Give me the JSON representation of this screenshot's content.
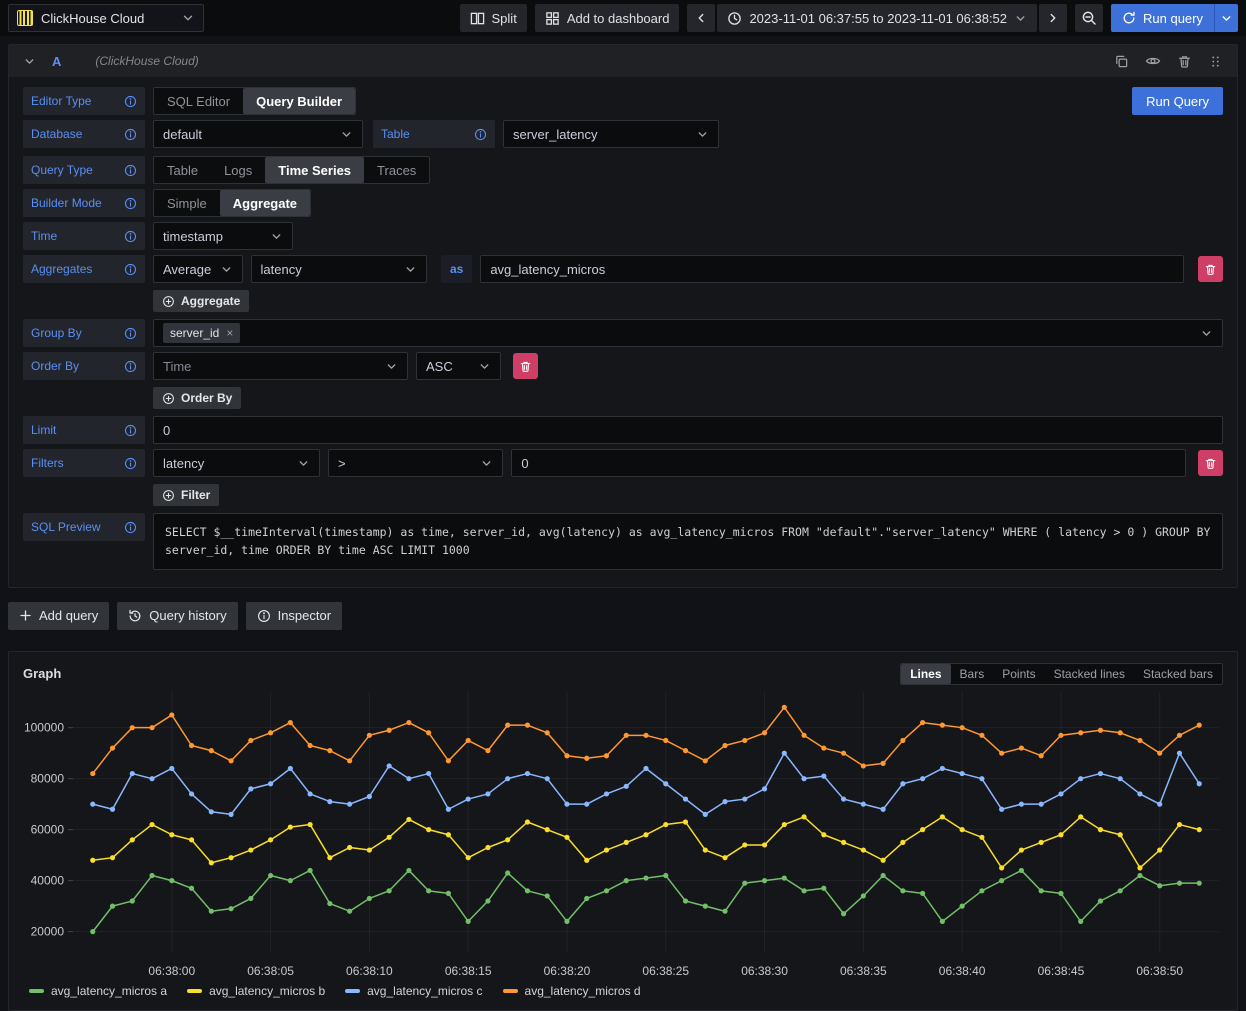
{
  "topbar": {
    "datasource_name": "ClickHouse Cloud",
    "split": "Split",
    "add_to_dashboard": "Add to dashboard",
    "time_range": "2023-11-01 06:37:55 to 2023-11-01 06:38:52",
    "run_query": "Run query"
  },
  "query_panel": {
    "ref_id": "A",
    "datasource_hint": "(ClickHouse Cloud)",
    "run_query": "Run Query",
    "editor_type": {
      "label": "Editor Type",
      "options": [
        "SQL Editor",
        "Query Builder"
      ],
      "selected": "Query Builder"
    },
    "database": {
      "label": "Database",
      "value": "default"
    },
    "table": {
      "label": "Table",
      "value": "server_latency"
    },
    "query_type": {
      "label": "Query Type",
      "options": [
        "Table",
        "Logs",
        "Time Series",
        "Traces"
      ],
      "selected": "Time Series"
    },
    "builder_mode": {
      "label": "Builder Mode",
      "options": [
        "Simple",
        "Aggregate"
      ],
      "selected": "Aggregate"
    },
    "time": {
      "label": "Time",
      "value": "timestamp"
    },
    "aggregates": {
      "label": "Aggregates",
      "function": "Average",
      "column": "latency",
      "as_badge": "as",
      "alias": "avg_latency_micros",
      "add_button": "Aggregate"
    },
    "group_by": {
      "label": "Group By",
      "chip": "server_id"
    },
    "order_by": {
      "label": "Order By",
      "column": "Time",
      "direction": "ASC",
      "add_button": "Order By"
    },
    "limit": {
      "label": "Limit",
      "value": "0"
    },
    "filters": {
      "label": "Filters",
      "column": "latency",
      "operator": ">",
      "value": "0",
      "add_button": "Filter"
    },
    "sql_preview": {
      "label": "SQL Preview",
      "sql": "SELECT $__timeInterval(timestamp) as time, server_id, avg(latency) as avg_latency_micros FROM \"default\".\"server_latency\" WHERE ( latency > 0 ) GROUP BY server_id, time ORDER BY time ASC LIMIT 1000"
    }
  },
  "actions": {
    "add_query": "Add query",
    "query_history": "Query history",
    "inspector": "Inspector"
  },
  "graph_panel": {
    "title": "Graph",
    "modes": [
      "Lines",
      "Bars",
      "Points",
      "Stacked lines",
      "Stacked bars"
    ],
    "selected_mode": "Lines"
  },
  "colors": {
    "primary": "#3d71d9",
    "destructive": "#cf3e66",
    "label_blue": "#5b8ff2",
    "logo_yellow": "#f3e24b"
  },
  "chart_data": {
    "type": "line",
    "title": "Graph",
    "x_start_label": "06:37:56",
    "x_step_seconds": 1,
    "x_end_label": "06:38:52",
    "x_range": [
      0,
      58
    ],
    "x_tick_positions": [
      5,
      10,
      15,
      20,
      25,
      30,
      35,
      40,
      45,
      50,
      55
    ],
    "x_tick_labels": [
      "06:38:00",
      "06:38:05",
      "06:38:10",
      "06:38:15",
      "06:38:20",
      "06:38:25",
      "06:38:30",
      "06:38:35",
      "06:38:40",
      "06:38:45",
      "06:38:50"
    ],
    "ylim": [
      12000,
      114000
    ],
    "y_ticks": [
      20000,
      40000,
      60000,
      80000,
      100000
    ],
    "grid": true,
    "legend_position": "bottom-left",
    "series": [
      {
        "name": "avg_latency_micros a",
        "color": "#73bf69",
        "values": [
          20000,
          30000,
          32000,
          42000,
          40000,
          37000,
          28000,
          29000,
          33000,
          42000,
          40000,
          44000,
          31000,
          28000,
          33000,
          36000,
          44000,
          36000,
          35000,
          24000,
          32000,
          43000,
          36000,
          34000,
          24000,
          33000,
          36000,
          40000,
          41000,
          42000,
          32000,
          30000,
          28000,
          39000,
          40000,
          41000,
          36000,
          37000,
          27000,
          34000,
          42000,
          36000,
          35000,
          24000,
          30000,
          36000,
          40000,
          44000,
          36000,
          35000,
          24000,
          32000,
          36000,
          42000,
          38000,
          39000,
          39000
        ]
      },
      {
        "name": "avg_latency_micros b",
        "color": "#fade2a",
        "values": [
          48000,
          49000,
          56000,
          62000,
          58000,
          56000,
          47000,
          49000,
          52000,
          56000,
          61000,
          62000,
          49000,
          53000,
          52000,
          57000,
          64000,
          60000,
          58000,
          49000,
          53000,
          56000,
          63000,
          60000,
          57000,
          48000,
          52000,
          55000,
          58000,
          62000,
          63000,
          52000,
          49000,
          54000,
          54000,
          62000,
          65000,
          58000,
          55000,
          52000,
          48000,
          55000,
          60000,
          65000,
          60000,
          57000,
          45000,
          52000,
          55000,
          58000,
          65000,
          60000,
          58000,
          45000,
          52000,
          62000,
          60000
        ]
      },
      {
        "name": "avg_latency_micros c",
        "color": "#8ab8ff",
        "values": [
          70000,
          68000,
          82000,
          80000,
          84000,
          74000,
          67000,
          66000,
          76000,
          78000,
          84000,
          74000,
          71000,
          70000,
          73000,
          85000,
          80000,
          82000,
          68000,
          72000,
          74000,
          80000,
          82000,
          80000,
          70000,
          70000,
          74000,
          77000,
          84000,
          78000,
          72000,
          66000,
          71000,
          72000,
          76000,
          90000,
          80000,
          81000,
          72000,
          70000,
          68000,
          78000,
          80000,
          84000,
          82000,
          80000,
          68000,
          70000,
          70000,
          74000,
          80000,
          82000,
          80000,
          74000,
          70000,
          90000,
          78000
        ]
      },
      {
        "name": "avg_latency_micros d",
        "color": "#ff9830",
        "values": [
          82000,
          92000,
          100000,
          100000,
          105000,
          93000,
          91000,
          87000,
          95000,
          98000,
          102000,
          93000,
          91000,
          87000,
          97000,
          99000,
          102000,
          98000,
          87000,
          95000,
          91000,
          101000,
          101000,
          98000,
          89000,
          88000,
          89000,
          97000,
          97000,
          95000,
          91000,
          87000,
          93000,
          95000,
          98000,
          108000,
          97000,
          92000,
          90000,
          85000,
          86000,
          95000,
          102000,
          101000,
          100000,
          97000,
          90000,
          92000,
          89000,
          97000,
          98000,
          99000,
          98000,
          95000,
          90000,
          97000,
          101000
        ]
      }
    ]
  }
}
